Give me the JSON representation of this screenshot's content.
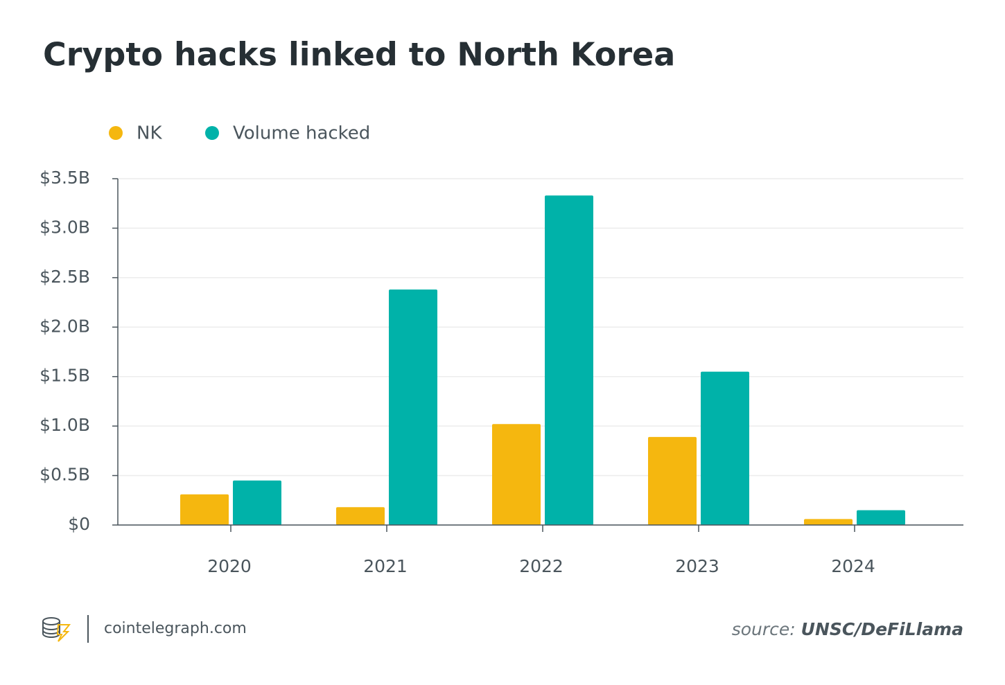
{
  "chart_data": {
    "type": "bar",
    "title": "Crypto hacks linked to North Korea",
    "categories": [
      "2020",
      "2021",
      "2022",
      "2023",
      "2024"
    ],
    "series": [
      {
        "name": "NK",
        "color": "#f5b70f",
        "values": [
          0.31,
          0.18,
          1.02,
          0.89,
          0.06
        ]
      },
      {
        "name": "Volume hacked",
        "color": "#00b2a9",
        "values": [
          0.45,
          2.38,
          3.33,
          1.55,
          0.15
        ]
      }
    ],
    "ylim": [
      0,
      3.5
    ],
    "yticks": [
      {
        "value": 0,
        "label": "$0"
      },
      {
        "value": 0.5,
        "label": "$0.5B"
      },
      {
        "value": 1,
        "label": "$1.0B"
      },
      {
        "value": 1.5,
        "label": "$1.5B"
      },
      {
        "value": 2,
        "label": "$2.0B"
      },
      {
        "value": 2.5,
        "label": "$2.5B"
      },
      {
        "value": 3,
        "label": "$3.0B"
      },
      {
        "value": 3.5,
        "label": "$3.5B"
      }
    ],
    "grid": true,
    "brand": "cointelegraph.com",
    "source_label": "source:",
    "source": "UNSC/DeFiLlama"
  }
}
